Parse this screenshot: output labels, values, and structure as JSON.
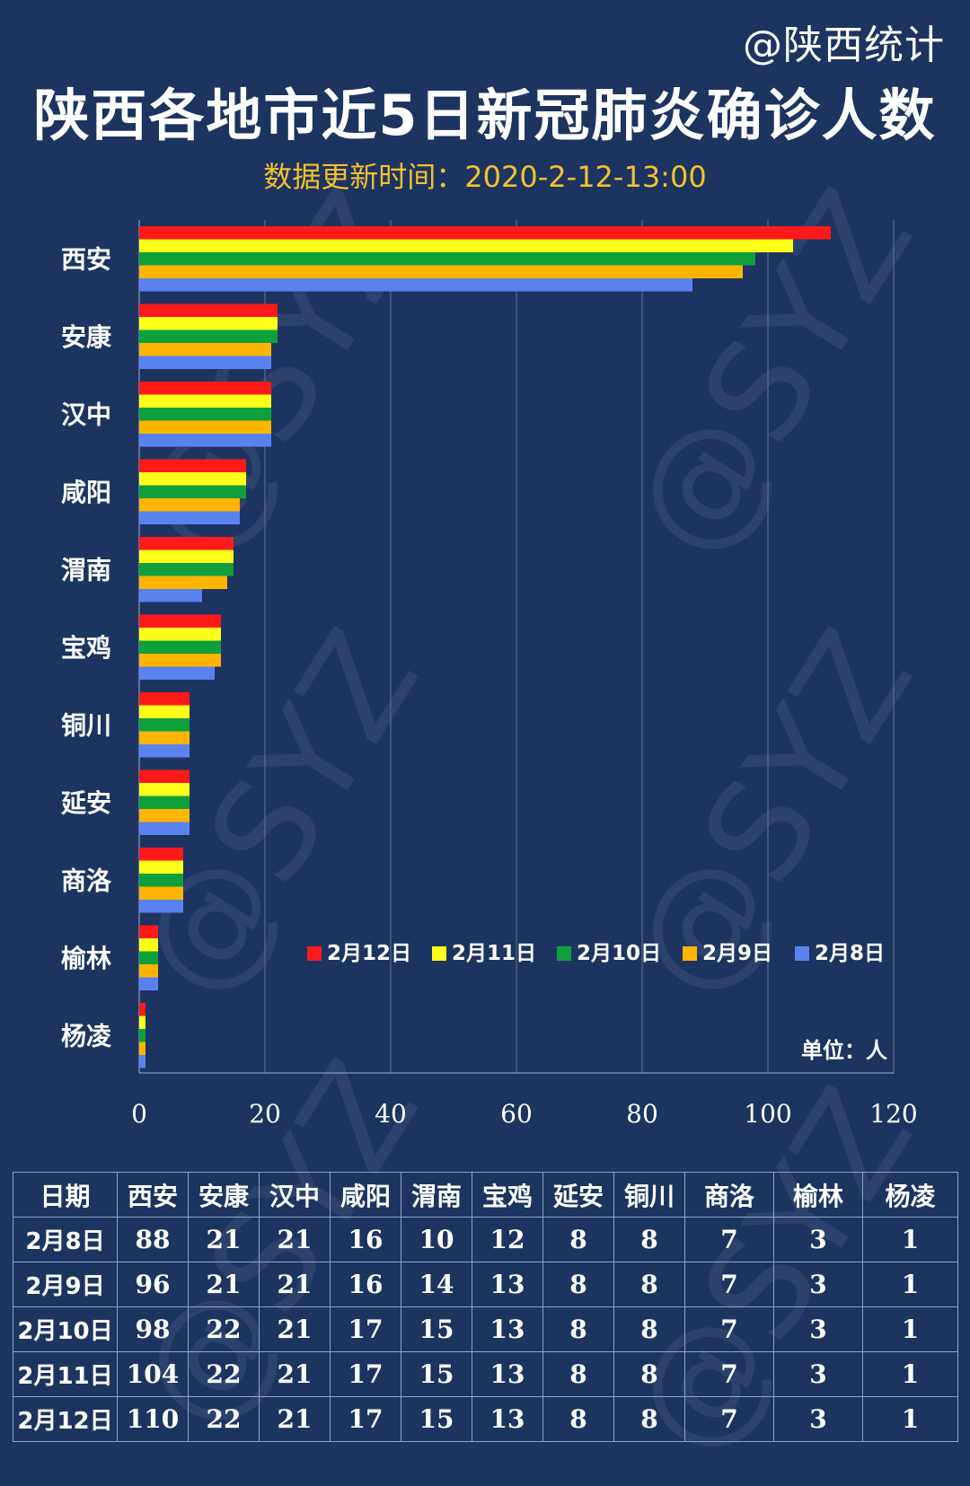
{
  "header": {
    "handle": "@陕西统计",
    "title": "陕西各地市近5日新冠肺炎确诊人数",
    "subtitle": "数据更新时间：2020-2-12-13:00"
  },
  "watermark": "@SYZ",
  "colors": {
    "background": "#1d3461",
    "title": "#ffffff",
    "subtitle": "#f2c12e"
  },
  "chart_data": {
    "type": "bar",
    "orientation": "horizontal",
    "categories": [
      "西安",
      "安康",
      "汉中",
      "咸阳",
      "渭南",
      "宝鸡",
      "铜川",
      "延安",
      "商洛",
      "榆林",
      "杨凌"
    ],
    "series": [
      {
        "name": "2月12日",
        "color": "#ff1a1a",
        "values": [
          110,
          22,
          21,
          17,
          15,
          13,
          8,
          8,
          7,
          3,
          1
        ]
      },
      {
        "name": "2月11日",
        "color": "#ffff1a",
        "values": [
          104,
          22,
          21,
          17,
          15,
          13,
          8,
          8,
          7,
          3,
          1
        ]
      },
      {
        "name": "2月10日",
        "color": "#0fa03c",
        "values": [
          98,
          22,
          21,
          17,
          15,
          13,
          8,
          8,
          7,
          3,
          1
        ]
      },
      {
        "name": "2月9日",
        "color": "#ffb400",
        "values": [
          96,
          21,
          21,
          16,
          14,
          13,
          8,
          8,
          7,
          3,
          1
        ]
      },
      {
        "name": "2月8日",
        "color": "#5a82ef",
        "values": [
          88,
          21,
          21,
          16,
          10,
          12,
          8,
          8,
          7,
          3,
          1
        ]
      }
    ],
    "xlim": [
      0,
      120
    ],
    "xticks": [
      0,
      20,
      40,
      60,
      80,
      100,
      120
    ],
    "grid": true,
    "legend_position": "bottom-right (inside plot)",
    "unit_label": "单位：人"
  },
  "table": {
    "headers": [
      "日期",
      "西安",
      "安康",
      "汉中",
      "咸阳",
      "渭南",
      "宝鸡",
      "延安",
      "铜川",
      "商洛",
      "榆林",
      "杨凌"
    ],
    "rows": [
      [
        "2月8日",
        "88",
        "21",
        "21",
        "16",
        "10",
        "12",
        "8",
        "8",
        "7",
        "3",
        "1"
      ],
      [
        "2月9日",
        "96",
        "21",
        "21",
        "16",
        "14",
        "13",
        "8",
        "8",
        "7",
        "3",
        "1"
      ],
      [
        "2月10日",
        "98",
        "22",
        "21",
        "17",
        "15",
        "13",
        "8",
        "8",
        "7",
        "3",
        "1"
      ],
      [
        "2月11日",
        "104",
        "22",
        "21",
        "17",
        "15",
        "13",
        "8",
        "8",
        "7",
        "3",
        "1"
      ],
      [
        "2月12日",
        "110",
        "22",
        "21",
        "17",
        "15",
        "13",
        "8",
        "8",
        "7",
        "3",
        "1"
      ]
    ]
  }
}
